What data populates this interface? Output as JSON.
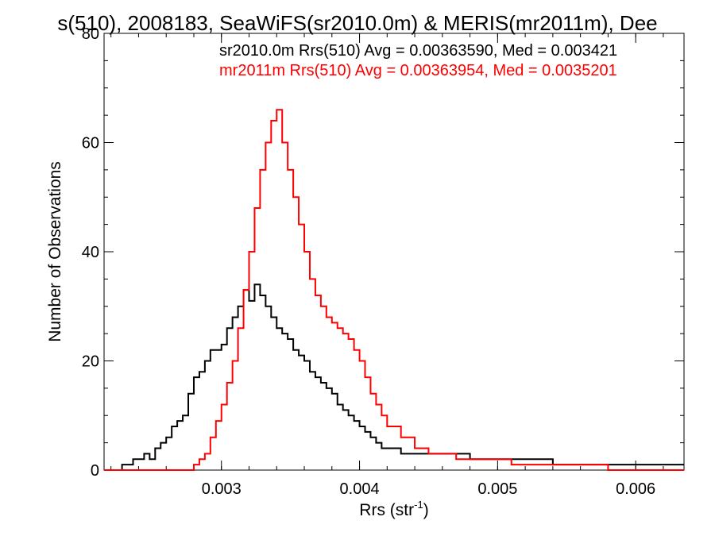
{
  "chart_data": {
    "type": "line",
    "title": "s(510), 2008183, SeaWiFS(sr2010.0m) & MERIS(mr2011m), Dee",
    "xlabel": "Rrs (str",
    "xlabel_sup": "-1",
    "xlabel_close": ")",
    "ylabel": "Number of Observations",
    "xlim": [
      0.00215,
      0.00635
    ],
    "ylim": [
      0,
      80
    ],
    "xticks": [
      0.003,
      0.004,
      0.005,
      0.006
    ],
    "xtick_labels": [
      "0.003",
      "0.004",
      "0.005",
      "0.006"
    ],
    "yticks": [
      0,
      20,
      40,
      60,
      80
    ],
    "ytick_labels": [
      "0",
      "20",
      "40",
      "60",
      "80"
    ],
    "grid": false,
    "annotations": [
      {
        "text": "sr2010.0m Rrs(510) Avg = 0.00363590, Med = 0.003421",
        "color": "#000000"
      },
      {
        "text": "mr2011m Rrs(510) Avg = 0.00363954, Med = 0.0035201",
        "color": "#ff0000"
      }
    ],
    "series": [
      {
        "name": "sr2010.0m",
        "color": "#000000",
        "x": [
          0.00215,
          0.00225,
          0.00228,
          0.00232,
          0.00236,
          0.0024,
          0.00244,
          0.00248,
          0.00252,
          0.00256,
          0.0026,
          0.00264,
          0.00268,
          0.00272,
          0.00276,
          0.0028,
          0.00284,
          0.00288,
          0.00292,
          0.00296,
          0.003,
          0.00304,
          0.00308,
          0.00312,
          0.00316,
          0.0032,
          0.00324,
          0.00328,
          0.00332,
          0.00336,
          0.0034,
          0.00344,
          0.00348,
          0.00352,
          0.00356,
          0.0036,
          0.00364,
          0.00368,
          0.00372,
          0.00376,
          0.0038,
          0.00384,
          0.00388,
          0.00392,
          0.00396,
          0.004,
          0.00404,
          0.00408,
          0.00412,
          0.00416,
          0.0042,
          0.0043,
          0.0044,
          0.0045,
          0.0046,
          0.0047,
          0.0048,
          0.0049,
          0.005,
          0.0051,
          0.0052,
          0.0053,
          0.0054,
          0.0055,
          0.0056,
          0.0057,
          0.0058,
          0.0059,
          0.006,
          0.0061,
          0.0062,
          0.0063
        ],
        "y": [
          0,
          0,
          1,
          1,
          2,
          2,
          3,
          2,
          4,
          5,
          6,
          8,
          9,
          10,
          14,
          17,
          18,
          20,
          22,
          22,
          23,
          26,
          28,
          30,
          33,
          31,
          34,
          32,
          30,
          28,
          26,
          25,
          24,
          22,
          21,
          20,
          18,
          17,
          16,
          15,
          14,
          12,
          11,
          10,
          9,
          8,
          7,
          6,
          5,
          4,
          4,
          3,
          3,
          3,
          3,
          3,
          2,
          2,
          2,
          2,
          2,
          2,
          1,
          1,
          1,
          1,
          1,
          1,
          1,
          1,
          1,
          1
        ]
      },
      {
        "name": "mr2011m",
        "color": "#ff0000",
        "x": [
          0.00215,
          0.0027,
          0.0028,
          0.00284,
          0.00288,
          0.00292,
          0.00296,
          0.003,
          0.00304,
          0.00308,
          0.00312,
          0.00316,
          0.0032,
          0.00324,
          0.00328,
          0.00332,
          0.00336,
          0.0034,
          0.00344,
          0.00348,
          0.00352,
          0.00356,
          0.0036,
          0.00364,
          0.00368,
          0.00372,
          0.00376,
          0.0038,
          0.00384,
          0.00388,
          0.00392,
          0.00396,
          0.004,
          0.00404,
          0.00408,
          0.00412,
          0.00416,
          0.0042,
          0.0043,
          0.0044,
          0.0045,
          0.0046,
          0.0047,
          0.0048,
          0.0049,
          0.005,
          0.0051,
          0.0052,
          0.0053,
          0.0054,
          0.0055,
          0.0056,
          0.0057,
          0.0058,
          0.0059,
          0.006,
          0.0061,
          0.0062,
          0.0063
        ],
        "y": [
          0,
          0,
          1,
          2,
          3,
          6,
          9,
          12,
          16,
          20,
          26,
          33,
          40,
          48,
          55,
          60,
          64,
          66,
          60,
          55,
          50,
          45,
          40,
          35,
          32,
          30,
          28,
          27,
          26,
          25,
          24,
          22,
          20,
          17,
          14,
          12,
          10,
          8,
          6,
          4,
          3,
          3,
          2,
          2,
          2,
          2,
          1,
          1,
          1,
          1,
          1,
          1,
          1,
          0,
          0,
          0,
          0,
          0,
          0
        ]
      }
    ]
  }
}
